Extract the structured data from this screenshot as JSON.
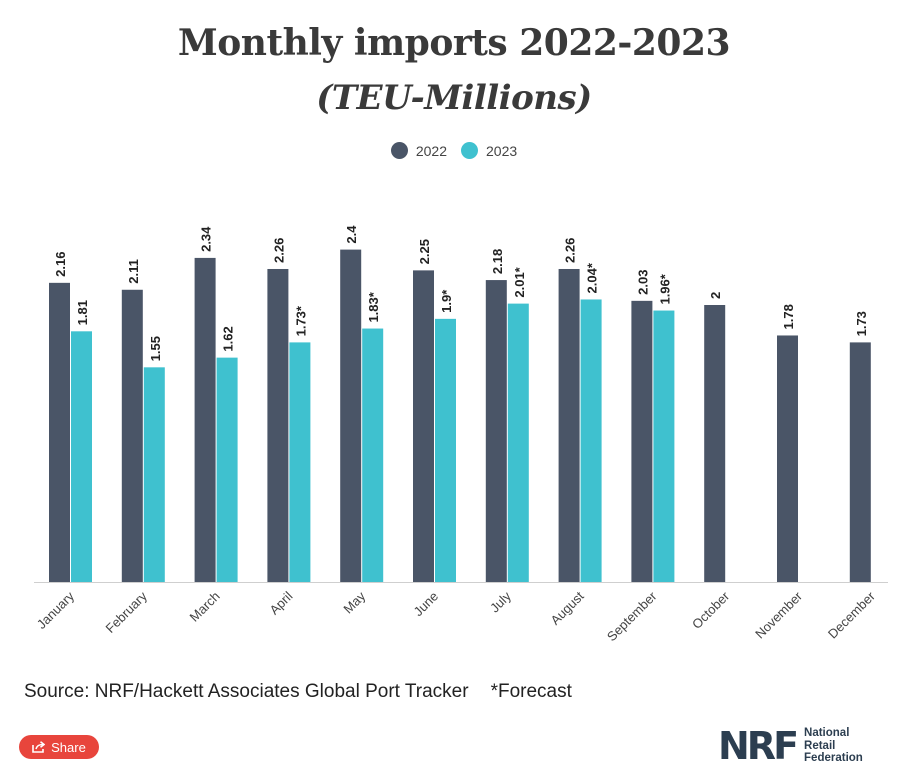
{
  "title": "Monthly imports 2022-2023",
  "subtitle": "(TEU-Millions)",
  "legend": [
    {
      "label": "2022",
      "color": "#4a5567"
    },
    {
      "label": "2023",
      "color": "#3fc1cf"
    }
  ],
  "chart_data": {
    "type": "bar",
    "title": "Monthly imports 2022-2023",
    "subtitle": "(TEU-Millions)",
    "categories": [
      "January",
      "February",
      "March",
      "April",
      "May",
      "June",
      "July",
      "August",
      "September",
      "October",
      "November",
      "December"
    ],
    "series": [
      {
        "name": "2022",
        "color": "#4a5567",
        "values": [
          2.16,
          2.11,
          2.34,
          2.26,
          2.4,
          2.25,
          2.18,
          2.26,
          2.03,
          2,
          1.78,
          1.73
        ],
        "labels": [
          "2.16",
          "2.11",
          "2.34",
          "2.26",
          "2.4",
          "2.25",
          "2.18",
          "2.26",
          "2.03",
          "2",
          "1.78",
          "1.73"
        ]
      },
      {
        "name": "2023",
        "color": "#3fc1cf",
        "values": [
          1.81,
          1.55,
          1.62,
          1.73,
          1.83,
          1.9,
          2.01,
          2.04,
          1.96,
          null,
          null,
          null
        ],
        "labels": [
          "1.81",
          "1.55",
          "1.62",
          "1.73*",
          "1.83*",
          "1.9*",
          "2.01*",
          "2.04*",
          "1.96*",
          "",
          "",
          ""
        ]
      }
    ],
    "ylim": [
      0,
      2.6
    ],
    "grid": false,
    "legend_position": "top-center"
  },
  "source_text": "Source: NRF/Hackett Associates Global Port Tracker",
  "forecast_note": "*Forecast",
  "share_label": "Share",
  "logo": {
    "mark": "NRF",
    "line1": "National",
    "line2": "Retail",
    "line3": "Federation"
  }
}
